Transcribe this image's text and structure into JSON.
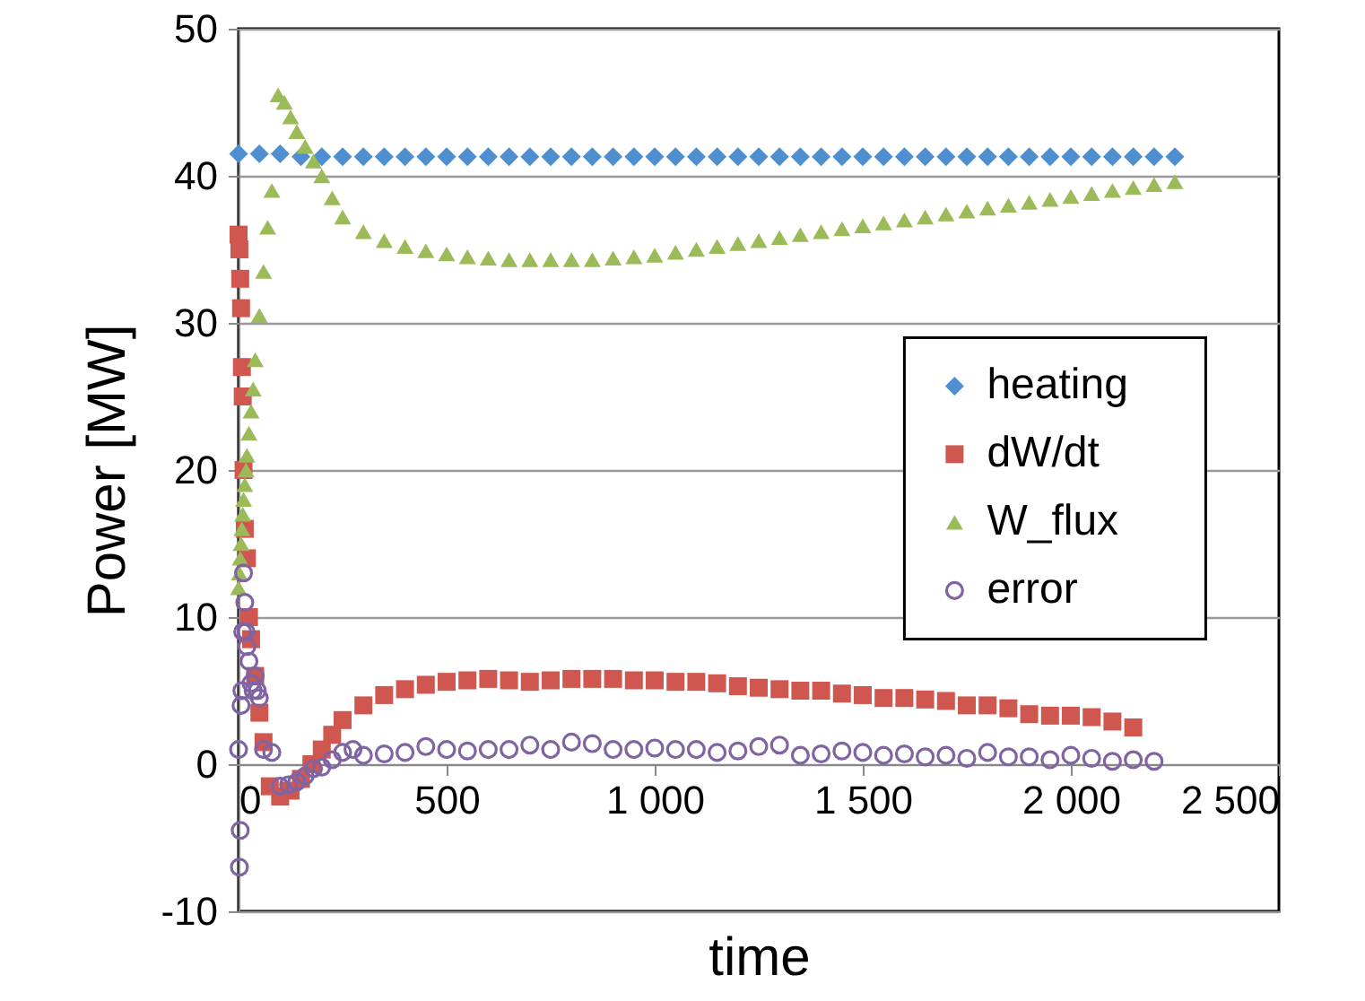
{
  "chart_data": {
    "type": "scatter",
    "xlabel": "time",
    "ylabel": "Power [MW]",
    "xlim": [
      0,
      2500
    ],
    "xticks": [
      0,
      500,
      {
        "value": 1000,
        "label": "1 000"
      },
      {
        "value": 1500,
        "label": "1 500"
      },
      {
        "value": 2000,
        "label": "2 000"
      },
      {
        "value": 2500,
        "label": "2 500"
      }
    ],
    "ylim": [
      -10,
      50
    ],
    "yticks": [
      -10,
      0,
      10,
      20,
      30,
      40,
      50
    ],
    "grid": "y",
    "legend": "right",
    "series": [
      {
        "name": "heating",
        "color": "#4f8fcf",
        "marker": "diamond",
        "x": [
          0,
          50,
          100,
          150,
          200,
          250,
          300,
          350,
          400,
          450,
          500,
          550,
          600,
          650,
          700,
          750,
          800,
          850,
          900,
          950,
          1000,
          1050,
          1100,
          1150,
          1200,
          1250,
          1300,
          1350,
          1400,
          1450,
          1500,
          1550,
          1600,
          1650,
          1700,
          1750,
          1800,
          1850,
          1900,
          1950,
          2000,
          2050,
          2100,
          2150,
          2200,
          2250
        ],
        "values": [
          41.5,
          41.5,
          41.5,
          41.3,
          41.3,
          41.3,
          41.3,
          41.3,
          41.3,
          41.3,
          41.3,
          41.3,
          41.3,
          41.3,
          41.3,
          41.3,
          41.3,
          41.3,
          41.3,
          41.3,
          41.3,
          41.3,
          41.3,
          41.3,
          41.3,
          41.3,
          41.3,
          41.3,
          41.3,
          41.3,
          41.3,
          41.3,
          41.3,
          41.3,
          41.3,
          41.3,
          41.3,
          41.3,
          41.3,
          41.3,
          41.3,
          41.3,
          41.3,
          41.3,
          41.3,
          41.3
        ]
      },
      {
        "name": "dW/dt",
        "color": "#d0574f",
        "marker": "square",
        "x": [
          0,
          2,
          4,
          6,
          8,
          10,
          12,
          15,
          20,
          25,
          30,
          40,
          50,
          60,
          75,
          100,
          125,
          150,
          175,
          200,
          225,
          250,
          300,
          350,
          400,
          450,
          500,
          550,
          600,
          650,
          700,
          750,
          800,
          850,
          900,
          950,
          1000,
          1050,
          1100,
          1150,
          1200,
          1250,
          1300,
          1350,
          1400,
          1450,
          1500,
          1550,
          1600,
          1650,
          1700,
          1750,
          1800,
          1850,
          1900,
          1950,
          2000,
          2050,
          2100,
          2150
        ],
        "values": [
          36,
          35,
          33,
          31,
          27,
          25,
          20,
          16,
          14,
          10,
          8.5,
          6,
          3.5,
          1.5,
          -1.5,
          -2.2,
          -1.8,
          -1,
          0,
          1,
          2,
          3,
          4,
          4.7,
          5.1,
          5.4,
          5.6,
          5.7,
          5.8,
          5.7,
          5.6,
          5.7,
          5.8,
          5.8,
          5.8,
          5.7,
          5.7,
          5.6,
          5.6,
          5.5,
          5.3,
          5.2,
          5.1,
          5,
          5,
          4.8,
          4.7,
          4.5,
          4.5,
          4.4,
          4.3,
          4,
          4,
          3.8,
          3.4,
          3.3,
          3.3,
          3.2,
          2.9,
          2.5
        ]
      },
      {
        "name": "W_flux",
        "color": "#9bbb59",
        "marker": "triangle",
        "x": [
          0,
          2,
          4,
          6,
          8,
          10,
          12,
          15,
          18,
          20,
          25,
          30,
          35,
          40,
          50,
          60,
          70,
          80,
          95,
          110,
          125,
          140,
          160,
          180,
          200,
          225,
          250,
          300,
          350,
          400,
          450,
          500,
          550,
          600,
          650,
          700,
          750,
          800,
          850,
          900,
          950,
          1000,
          1050,
          1100,
          1150,
          1200,
          1250,
          1300,
          1350,
          1400,
          1450,
          1500,
          1550,
          1600,
          1650,
          1700,
          1750,
          1800,
          1850,
          1900,
          1950,
          2000,
          2050,
          2100,
          2150,
          2200,
          2250
        ],
        "values": [
          12,
          13,
          14,
          15,
          16,
          17,
          18,
          19,
          20,
          21,
          22.5,
          24,
          25.5,
          27.5,
          30.5,
          33.5,
          36.5,
          39,
          45.5,
          45,
          44,
          43,
          42,
          41,
          40,
          38.5,
          37.2,
          36.2,
          35.6,
          35.2,
          34.9,
          34.7,
          34.5,
          34.4,
          34.3,
          34.3,
          34.3,
          34.3,
          34.3,
          34.4,
          34.5,
          34.6,
          34.8,
          35,
          35.2,
          35.4,
          35.6,
          35.8,
          36,
          36.2,
          36.4,
          36.6,
          36.8,
          37,
          37.2,
          37.4,
          37.6,
          37.8,
          38,
          38.2,
          38.4,
          38.6,
          38.8,
          39,
          39.2,
          39.4,
          39.6
        ]
      },
      {
        "name": "error",
        "color": "#8064a2",
        "marker": "circle",
        "x": [
          0,
          2,
          4,
          6,
          8,
          10,
          12,
          15,
          18,
          20,
          25,
          30,
          35,
          40,
          45,
          50,
          60,
          80,
          100,
          120,
          140,
          160,
          180,
          200,
          225,
          250,
          275,
          300,
          350,
          400,
          450,
          500,
          550,
          600,
          650,
          700,
          750,
          800,
          850,
          900,
          950,
          1000,
          1050,
          1100,
          1150,
          1200,
          1250,
          1300,
          1350,
          1400,
          1450,
          1500,
          1550,
          1600,
          1650,
          1700,
          1750,
          1800,
          1850,
          1900,
          1950,
          2000,
          2050,
          2100,
          2150,
          2200
        ],
        "values": [
          1,
          -7,
          -4.5,
          4,
          5,
          9,
          13,
          11,
          9,
          8,
          7,
          5.5,
          5,
          6,
          5,
          4.5,
          1,
          0.8,
          -1.5,
          -1.4,
          -1.2,
          -0.8,
          -0.3,
          -0.2,
          0.3,
          0.8,
          1,
          0.6,
          0.7,
          0.8,
          1.2,
          1,
          0.9,
          1,
          1,
          1.3,
          1,
          1.5,
          1.4,
          1,
          1,
          1.1,
          1,
          1,
          0.8,
          0.9,
          1.2,
          1.3,
          0.6,
          0.7,
          0.9,
          0.8,
          0.6,
          0.7,
          0.5,
          0.6,
          0.4,
          0.8,
          0.5,
          0.5,
          0.3,
          0.6,
          0.4,
          0.2,
          0.3,
          0.2
        ]
      }
    ]
  }
}
